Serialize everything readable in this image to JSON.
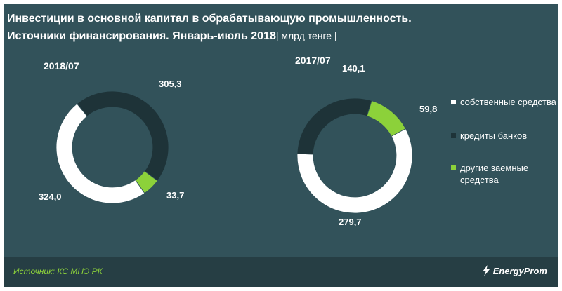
{
  "header": {
    "title_line1": "Инвестиции в  основной капитал в обрабатывающую промышленность.",
    "title_line2": "Источники финансирования. Январь-июль 2018",
    "unit_label": "| млрд тенге  |"
  },
  "colors": {
    "background": "#32525a",
    "own_funds": "#ffffff",
    "bank_loans": "#1e3338",
    "other_borrowed": "#8cd13a",
    "source_text": "#8cd13a"
  },
  "chart_data": [
    {
      "type": "pie",
      "style": "donut",
      "title": "2018/07",
      "series": [
        {
          "name": "собственные средства",
          "value": 324.0,
          "label": "324,0"
        },
        {
          "name": "кредиты банков",
          "value": 305.3,
          "label": "305,3"
        },
        {
          "name": "другие заемные средства",
          "value": 33.7,
          "label": "33,7"
        }
      ]
    },
    {
      "type": "pie",
      "style": "donut",
      "title": "2017/07",
      "series": [
        {
          "name": "собственные средства",
          "value": 279.7,
          "label": "279,7"
        },
        {
          "name": "кредиты банков",
          "value": 140.1,
          "label": "140,1"
        },
        {
          "name": "другие заемные средства",
          "value": 59.8,
          "label": "59,8"
        }
      ]
    }
  ],
  "legend": {
    "items": [
      {
        "label": "собственные средства",
        "color": "#ffffff"
      },
      {
        "label": "кредиты банков",
        "color": "#1e3338"
      },
      {
        "label": "другие заемные средства",
        "color": "#8cd13a"
      }
    ]
  },
  "footer": {
    "source": "Источник: КС МНЭ РК",
    "logo_text": "EnergyProm"
  }
}
